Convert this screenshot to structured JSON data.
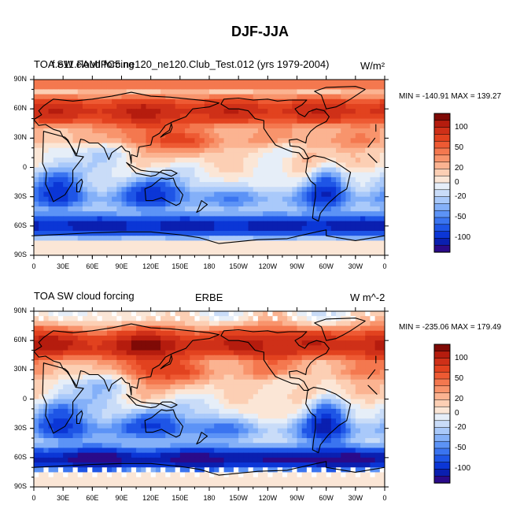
{
  "figure": {
    "title": "DJF-JJA"
  },
  "colorbar": {
    "levels": [
      -140,
      -120,
      -100,
      -80,
      -60,
      -50,
      -40,
      -30,
      -20,
      -10,
      0,
      10,
      20,
      30,
      40,
      50,
      60,
      80,
      100,
      120,
      140
    ],
    "tick_labels": [
      "100",
      "50",
      "20",
      "0",
      "-20",
      "-50",
      "-100"
    ],
    "colors": [
      "#2a0a8a",
      "#0a1fb0",
      "#0b36d6",
      "#1e55e6",
      "#3a74f0",
      "#5c93f6",
      "#84b0f8",
      "#a9c9fa",
      "#c9dcf8",
      "#e6eef8",
      "#fbe6d6",
      "#fccfb4",
      "#fbb391",
      "#f8946c",
      "#f4784f",
      "#ee5a33",
      "#e2421f",
      "#cf3018",
      "#b51c0e",
      "#7f0a06"
    ]
  },
  "chart_data": [
    {
      "type": "map",
      "projection": "cylindrical-equidistant",
      "title_left": "TOA SW cloud forcing",
      "title_center": "f.e11.FAMIPC5.ne120_ne120.Club_Test.012 (yrs 1979-2004)",
      "title_right": "W/m²",
      "min": -140.91,
      "max": 139.27,
      "stats_text": "MIN = -140.91 MAX = 139.27",
      "lon_ticks": [
        "0",
        "30E",
        "60E",
        "90E",
        "120E",
        "150E",
        "180",
        "150W",
        "120W",
        "90W",
        "60W",
        "30W",
        "0"
      ],
      "lat_ticks": [
        "90N",
        "60N",
        "30N",
        "0",
        "30S",
        "60S",
        "90S"
      ],
      "lat_range": [
        -90,
        90
      ],
      "lon_range": [
        0,
        360
      ]
    },
    {
      "type": "map",
      "projection": "cylindrical-equidistant",
      "title_left": "TOA SW cloud forcing",
      "title_center": "ERBE",
      "title_right": "W m^-2",
      "min": -235.06,
      "max": 179.49,
      "stats_text": "MIN = -235.06 MAX = 179.49",
      "lon_ticks": [
        "0",
        "30E",
        "60E",
        "90E",
        "120E",
        "150E",
        "180",
        "150W",
        "120W",
        "90W",
        "60W",
        "30W",
        "0"
      ],
      "lat_ticks": [
        "90N",
        "60N",
        "30N",
        "0",
        "30S",
        "60S",
        "90S"
      ],
      "lat_range": [
        -90,
        90
      ],
      "lon_range": [
        0,
        360
      ]
    }
  ]
}
